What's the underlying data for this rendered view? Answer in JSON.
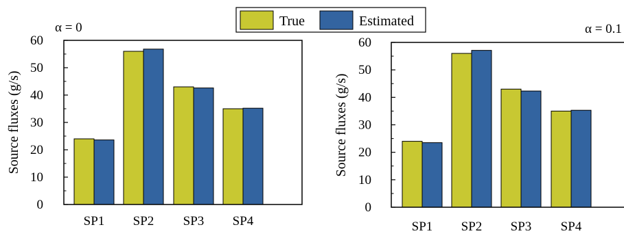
{
  "legend": {
    "entries": [
      {
        "label": "True",
        "color": "#c8c832"
      },
      {
        "label": "Estimated",
        "color": "#3364a0"
      }
    ]
  },
  "chart_data": [
    {
      "type": "bar",
      "panel_label": "α = 0",
      "categories": [
        "SP1",
        "SP2",
        "SP3",
        "SP4"
      ],
      "series": [
        {
          "name": "True",
          "values": [
            24,
            56,
            43,
            35
          ],
          "color": "#c8c832"
        },
        {
          "name": "Estimated",
          "values": [
            23.6,
            56.8,
            42.6,
            35.2
          ],
          "color": "#3364a0"
        }
      ],
      "xlabel": "",
      "ylabel": "Source fluxes (g/s)",
      "ylim": [
        0,
        60
      ],
      "yticks": [
        0,
        10,
        20,
        30,
        40,
        50,
        60
      ],
      "grid": false,
      "legend_position": "top-center"
    },
    {
      "type": "bar",
      "panel_label": "α = 0.1",
      "categories": [
        "SP1",
        "SP2",
        "SP3",
        "SP4"
      ],
      "series": [
        {
          "name": "True",
          "values": [
            24,
            56,
            43,
            35
          ],
          "color": "#c8c832"
        },
        {
          "name": "Estimated",
          "values": [
            23.5,
            57.1,
            42.3,
            35.3
          ],
          "color": "#3364a0"
        }
      ],
      "xlabel": "",
      "ylabel": "Source fluxes (g/s)",
      "ylim": [
        0,
        60
      ],
      "yticks": [
        0,
        10,
        20,
        30,
        40,
        50,
        60
      ],
      "grid": false,
      "legend_position": "top-center"
    }
  ]
}
